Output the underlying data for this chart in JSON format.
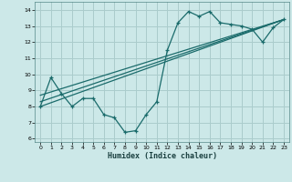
{
  "background_color": "#cce8e8",
  "grid_color": "#aacccc",
  "line_color": "#1a6b6b",
  "marker_color": "#1a6b6b",
  "xlabel": "Humidex (Indice chaleur)",
  "xlim": [
    -0.5,
    23.5
  ],
  "ylim": [
    5.8,
    14.5
  ],
  "yticks": [
    6,
    7,
    8,
    9,
    10,
    11,
    12,
    13,
    14
  ],
  "xticks": [
    0,
    1,
    2,
    3,
    4,
    5,
    6,
    7,
    8,
    9,
    10,
    11,
    12,
    13,
    14,
    15,
    16,
    17,
    18,
    19,
    20,
    21,
    22,
    23
  ],
  "line1_x": [
    0,
    1,
    2,
    3,
    4,
    5,
    6,
    7,
    8,
    9,
    10,
    11,
    12,
    13,
    14,
    15,
    16,
    17,
    18,
    19,
    20,
    21,
    22,
    23
  ],
  "line1_y": [
    8.0,
    9.8,
    8.8,
    8.0,
    8.5,
    8.5,
    7.5,
    7.3,
    6.4,
    6.5,
    7.5,
    8.3,
    11.5,
    13.2,
    13.9,
    13.6,
    13.9,
    13.2,
    13.1,
    13.0,
    12.8,
    12.0,
    12.9,
    13.4
  ],
  "line2_x": [
    0,
    23
  ],
  "line2_y": [
    8.0,
    13.4
  ],
  "line3_x": [
    0,
    23
  ],
  "line3_y": [
    8.3,
    13.4
  ],
  "line4_x": [
    0,
    23
  ],
  "line4_y": [
    8.7,
    13.4
  ]
}
